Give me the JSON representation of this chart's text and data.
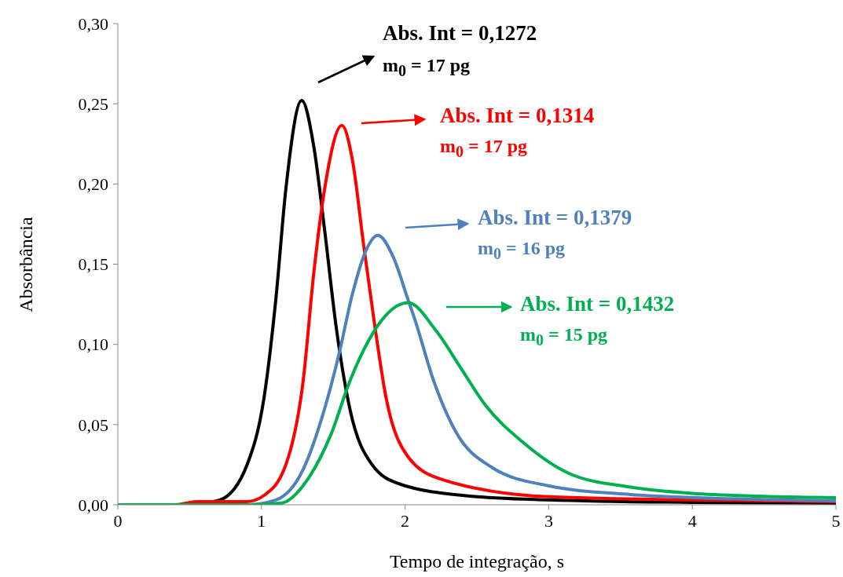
{
  "chart_data": {
    "type": "line",
    "xlabel": "Tempo de integração, s",
    "ylabel": "Absorbância",
    "xlim": [
      0,
      5
    ],
    "xticks": [
      0,
      1,
      2,
      3,
      4,
      5
    ],
    "ylim": [
      0,
      0.3
    ],
    "yticks": [
      {
        "value": 0,
        "label": "0,00"
      },
      {
        "value": 0.05,
        "label": "0,05"
      },
      {
        "value": 0.1,
        "label": "0,10"
      },
      {
        "value": 0.15,
        "label": "0,15"
      },
      {
        "value": 0.2,
        "label": "0,20"
      },
      {
        "value": 0.25,
        "label": "0,25"
      },
      {
        "value": 0.3,
        "label": "0,30"
      }
    ],
    "grid": false,
    "legend": false,
    "marker": "none",
    "line_style": "solid",
    "series": [
      {
        "color": "#000000",
        "x": [
          0,
          0.5,
          0.71,
          0.9,
          1.02,
          1.1,
          1.17,
          1.28,
          1.365,
          1.44,
          1.52,
          1.615,
          1.77,
          1.96,
          2.44,
          3,
          4,
          5
        ],
        "values": [
          0,
          0,
          0.003,
          0.025,
          0.068,
          0.128,
          0.197,
          0.252,
          0.223,
          0.171,
          0.111,
          0.06,
          0.025,
          0.013,
          0.0055,
          0.003,
          0.0015,
          0.001
        ]
      },
      {
        "color": "#ff0000",
        "x": [
          0,
          0.4,
          0.55,
          0.7,
          0.9,
          1.02,
          1.17,
          1.29,
          1.365,
          1.44,
          1.56,
          1.635,
          1.71,
          1.79,
          1.865,
          2.02,
          2.25,
          3,
          4,
          5
        ],
        "values": [
          0,
          0,
          0.002,
          0.002,
          0.002,
          0.006,
          0.025,
          0.077,
          0.145,
          0.197,
          0.2365,
          0.214,
          0.163,
          0.111,
          0.068,
          0.03,
          0.016,
          0.005,
          0.003,
          0.002
        ]
      },
      {
        "color": "#4f81bd",
        "x": [
          0,
          0.9,
          1.1,
          1.29,
          1.44,
          1.54,
          1.635,
          1.73,
          1.81,
          1.92,
          2.02,
          2.07,
          2.2,
          2.35,
          2.61,
          2.99,
          3.57,
          4,
          5
        ],
        "values": [
          0,
          0,
          0.003,
          0.022,
          0.06,
          0.094,
          0.132,
          0.159,
          0.168,
          0.154,
          0.128,
          0.115,
          0.077,
          0.046,
          0.023,
          0.012,
          0.0064,
          0.0045,
          0.0025
        ]
      },
      {
        "color": "#00b050",
        "x": [
          0,
          0.9,
          1.135,
          1.33,
          1.48,
          1.615,
          1.75,
          1.865,
          2.02,
          2.22,
          2.39,
          2.56,
          2.82,
          3.14,
          3.57,
          4,
          4.43,
          5
        ],
        "values": [
          0,
          0,
          0.001,
          0.017,
          0.043,
          0.077,
          0.103,
          0.118,
          0.126,
          0.108,
          0.085,
          0.062,
          0.039,
          0.0196,
          0.011,
          0.0071,
          0.0054,
          0.0044
        ]
      }
    ],
    "annotations": [
      "Abs. Int = 0,1272",
      "m$_{0}$ = 17 pg",
      "Abs. Int = 0,1314",
      "m$_{0}$ = 17 pg",
      "Abs. Int = 0,1379",
      "m$_{0}$ = 16 pg",
      "Abs. Int = 0,1432",
      "m$_{0}$ = 15 pg"
    ]
  }
}
